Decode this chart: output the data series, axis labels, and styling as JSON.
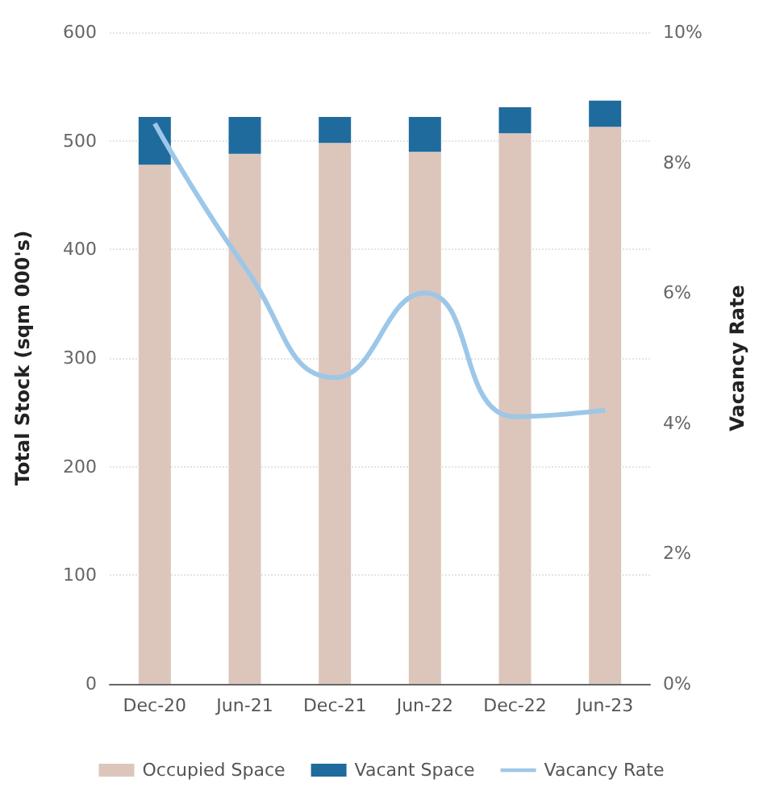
{
  "chart_data": {
    "type": "bar",
    "stacked": true,
    "categories": [
      "Dec-20",
      "Jun-21",
      "Dec-21",
      "Jun-22",
      "Dec-22",
      "Jun-23"
    ],
    "ylabel": "Total Stock (sqm 000's)",
    "y2label": "Vacancy Rate",
    "series": [
      {
        "name": "Occupied Space",
        "color": "#dcc6bb",
        "values": [
          478,
          488,
          498,
          490,
          507,
          513
        ]
      },
      {
        "name": "Vacant Space",
        "color": "#1f6b9e",
        "values": [
          44,
          34,
          24,
          32,
          24,
          24
        ]
      },
      {
        "name": "Vacancy Rate",
        "type": "line",
        "axis": "y2",
        "color": "#9dc7e8",
        "values": [
          8.6,
          6.4,
          4.7,
          6.0,
          4.1,
          4.2
        ]
      }
    ],
    "ylim": [
      0,
      600
    ],
    "yticks": [
      0,
      100,
      200,
      300,
      400,
      500,
      600
    ],
    "y2lim": [
      0,
      10
    ],
    "y2ticks": [
      {
        "value": 0,
        "label": "0%"
      },
      {
        "value": 2,
        "label": "2%"
      },
      {
        "value": 4,
        "label": "4%"
      },
      {
        "value": 6,
        "label": "6%"
      },
      {
        "value": 8,
        "label": "8%"
      },
      {
        "value": 10,
        "label": "10%"
      }
    ],
    "grid": "y",
    "legend": "bottom",
    "marker": "none"
  }
}
